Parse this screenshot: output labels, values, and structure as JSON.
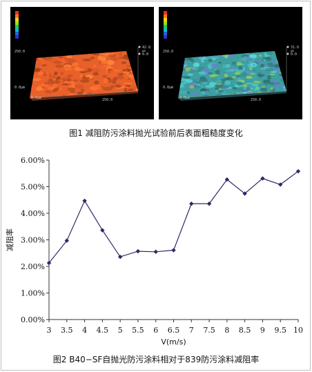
{
  "figure1": {
    "caption": "图1   减阻防污涂料抛光试验前后表面粗糙度变化",
    "panels": [
      {
        "id": "before",
        "surface_color": "#e8602a",
        "z_max_label": "42.8",
        "z_unit": "μm",
        "z_zero_label": "0.0",
        "y_label": "250.0",
        "x_origin_label": "0.0μm",
        "x_end_label": "250.0",
        "bottom_left_label": "0.0μm"
      },
      {
        "id": "after",
        "surface_color": "#3f9fa0",
        "z_max_label": "31.0",
        "z_unit": "μm",
        "z_zero_label": "0.0",
        "y_label": "250.0",
        "x_origin_label": "0.0μm",
        "x_end_label": "250.0",
        "bottom_left_label": "0.0μm"
      }
    ]
  },
  "figure2": {
    "caption": "图2   B40−SF自抛光防污涂料相对于839防污涂料减阻率",
    "chart_data": {
      "type": "line",
      "title": "",
      "xlabel": "V(m/s)",
      "ylabel": "减阻率",
      "x": [
        3,
        3.5,
        4,
        4.5,
        5,
        5.5,
        6,
        6.5,
        7,
        7.5,
        8,
        8.5,
        9,
        9.5,
        10
      ],
      "x_tick_labels": [
        "3",
        "3.5",
        "4",
        "4.5",
        "5",
        "5.5",
        "6",
        "6.5",
        "7",
        "7.5",
        "8",
        "8.5",
        "9",
        "9.5",
        "10"
      ],
      "series": [
        {
          "values": [
            2.13,
            2.97,
            4.47,
            3.36,
            2.36,
            2.57,
            2.55,
            2.61,
            4.36,
            4.36,
            5.27,
            4.74,
            5.31,
            5.08,
            5.58
          ],
          "color": "#2b2b66",
          "marker": "diamond"
        }
      ],
      "xlim": [
        3,
        10
      ],
      "ylim": [
        0,
        6
      ],
      "y_ticks": [
        0,
        1,
        2,
        3,
        4,
        5,
        6
      ],
      "y_tick_labels": [
        "0.00%",
        "1.00%",
        "2.00%",
        "3.00%",
        "4.00%",
        "5.00%",
        "6.00%"
      ],
      "grid": false,
      "legend": "none"
    }
  }
}
